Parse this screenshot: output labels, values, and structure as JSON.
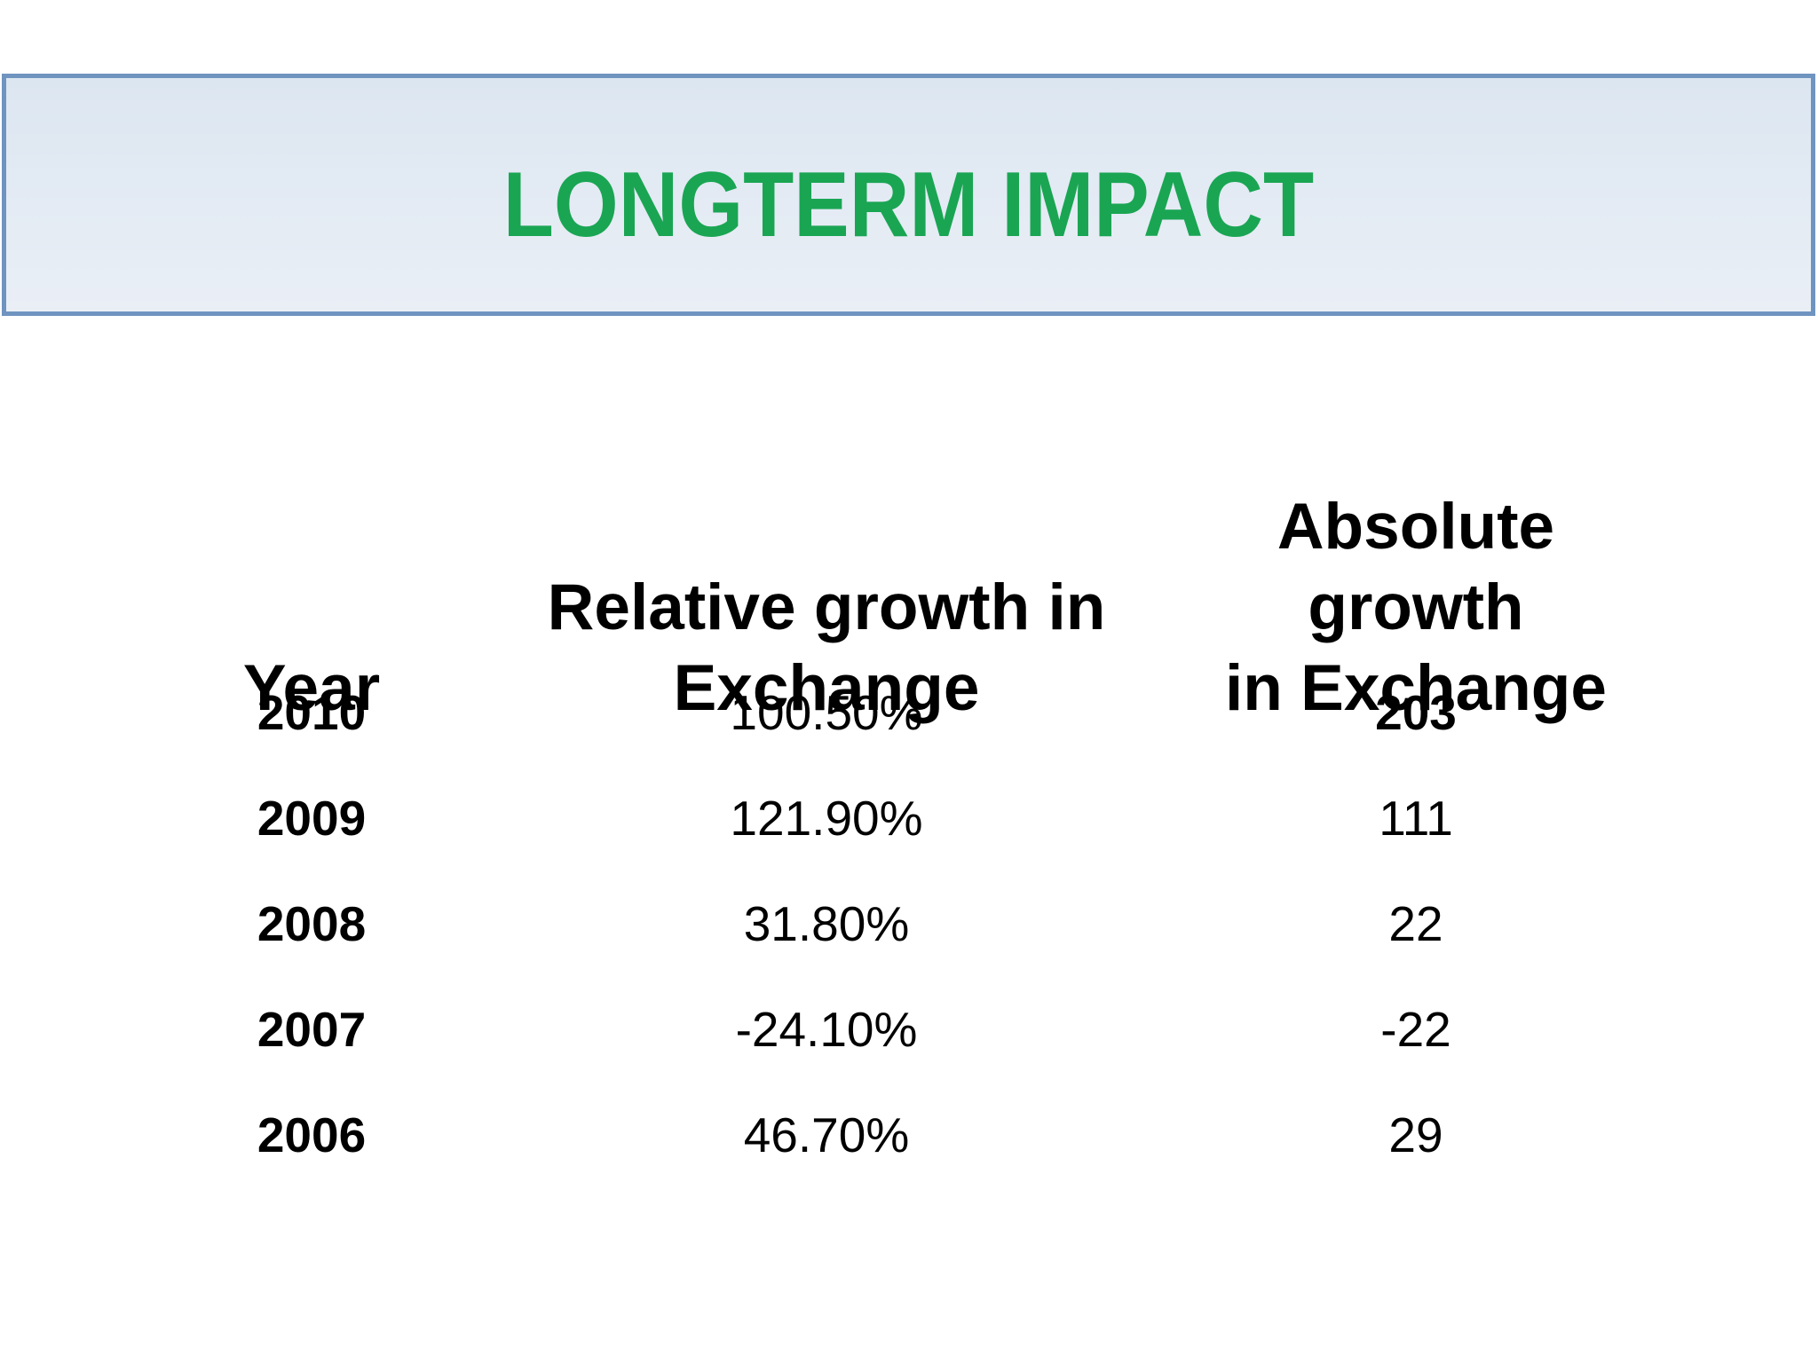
{
  "title": {
    "text": "LONGTERM IMPACT"
  },
  "theme": {
    "title_color": "#1AA553",
    "banner_border": "#6F94C0",
    "banner_bg_top": "#DCE6F1",
    "banner_bg_bottom": "#EAEFF6",
    "text_color": "#000000",
    "page_bg": "#FFFFFF"
  },
  "table": {
    "headers": [
      {
        "label": "Year"
      },
      {
        "label": "Relative growth in\nExchange"
      },
      {
        "label": "Absolute growth\nin Exchange"
      }
    ],
    "rows": [
      {
        "year": "2010",
        "relative": "100.50%",
        "absolute": "203"
      },
      {
        "year": "2009",
        "relative": "121.90%",
        "absolute": "111"
      },
      {
        "year": "2008",
        "relative": "31.80%",
        "absolute": "22"
      },
      {
        "year": "2007",
        "relative": "-24.10%",
        "absolute": "-22"
      },
      {
        "year": "2006",
        "relative": "46.70%",
        "absolute": "29"
      }
    ]
  }
}
